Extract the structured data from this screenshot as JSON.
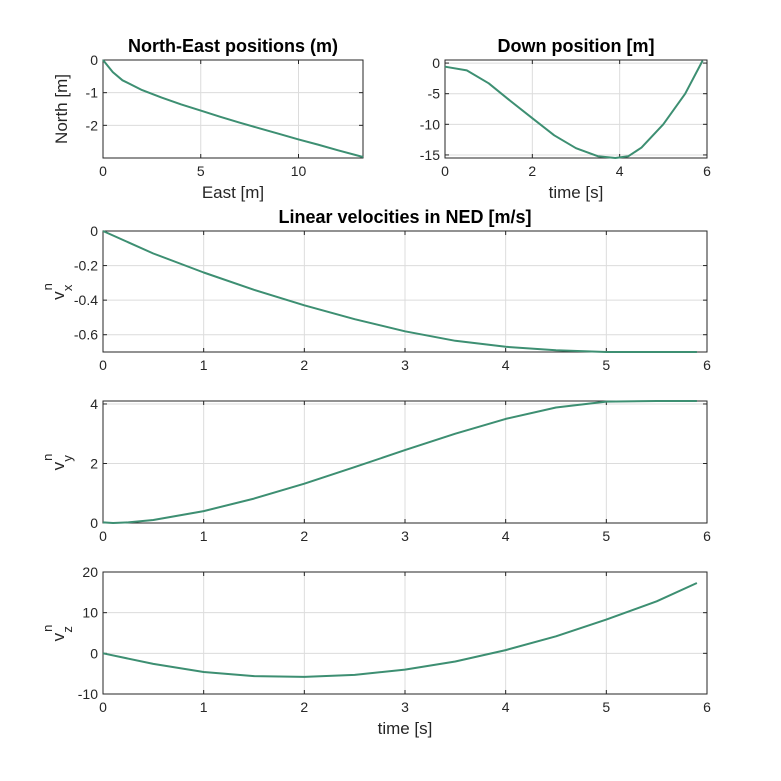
{
  "colors": {
    "line": "#3d8f72",
    "axis": "#262626",
    "grid": "#dcdcdc"
  },
  "chart_data": [
    {
      "id": "ne",
      "type": "line",
      "title": "North-East positions (m)",
      "xlabel": "East [m]",
      "ylabel": "North [m]",
      "xlim": [
        0,
        13.3
      ],
      "ylim": [
        -3.0,
        0.0
      ],
      "xticks": [
        0,
        5,
        10
      ],
      "yticks": [
        -2,
        -1,
        0
      ],
      "grid": true,
      "series": [
        {
          "x": [
            0,
            0.5,
            1,
            2,
            3,
            4,
            5,
            6,
            7,
            8,
            9,
            10,
            11,
            12,
            13.3
          ],
          "y": [
            0,
            -0.37,
            -0.62,
            -0.92,
            -1.15,
            -1.36,
            -1.55,
            -1.74,
            -1.92,
            -2.09,
            -2.26,
            -2.43,
            -2.59,
            -2.76,
            -2.97
          ]
        }
      ]
    },
    {
      "id": "down",
      "type": "line",
      "title": "Down position [m]",
      "xlabel": "time [s]",
      "ylabel": "",
      "xlim": [
        0,
        6
      ],
      "ylim": [
        -15.5,
        0.5
      ],
      "xticks": [
        0,
        2,
        4,
        6
      ],
      "yticks": [
        -15,
        -10,
        -5,
        0
      ],
      "grid": true,
      "series": [
        {
          "x": [
            0,
            0.5,
            1,
            1.5,
            2,
            2.5,
            3,
            3.5,
            3.9,
            4.2,
            4.5,
            5,
            5.5,
            5.9
          ],
          "y": [
            -0.6,
            -1.2,
            -3.3,
            -6.2,
            -9.0,
            -11.8,
            -13.9,
            -15.2,
            -15.5,
            -15.2,
            -13.8,
            -10.0,
            -5.0,
            0.4
          ]
        }
      ]
    },
    {
      "id": "vx",
      "type": "line",
      "title": "Linear velocities in NED [m/s]",
      "xlabel": "",
      "ylabel": "v",
      "ylabel_sup": "n",
      "ylabel_sub": "x",
      "xlim": [
        0,
        6
      ],
      "ylim": [
        -0.7,
        0.0
      ],
      "xticks": [
        0,
        1,
        2,
        3,
        4,
        5,
        6
      ],
      "yticks": [
        -0.6,
        -0.4,
        -0.2,
        0
      ],
      "grid": true,
      "series": [
        {
          "x": [
            0,
            0.5,
            1,
            1.5,
            2,
            2.5,
            3,
            3.5,
            4,
            4.5,
            5,
            5.5,
            5.9
          ],
          "y": [
            0,
            -0.13,
            -0.24,
            -0.34,
            -0.43,
            -0.51,
            -0.58,
            -0.635,
            -0.67,
            -0.69,
            -0.7,
            -0.7,
            -0.7
          ]
        }
      ]
    },
    {
      "id": "vy",
      "type": "line",
      "title": "",
      "xlabel": "",
      "ylabel": "v",
      "ylabel_sup": "n",
      "ylabel_sub": "y",
      "xlim": [
        0,
        6
      ],
      "ylim": [
        0,
        4.1
      ],
      "xticks": [
        0,
        1,
        2,
        3,
        4,
        5,
        6
      ],
      "yticks": [
        0,
        2,
        4
      ],
      "grid": true,
      "series": [
        {
          "x": [
            0,
            0.1,
            0.25,
            0.5,
            1,
            1.5,
            2,
            2.5,
            3,
            3.5,
            4,
            4.5,
            5,
            5.5,
            5.9
          ],
          "y": [
            0.02,
            0,
            0.02,
            0.1,
            0.4,
            0.82,
            1.32,
            1.88,
            2.45,
            3.0,
            3.5,
            3.88,
            4.08,
            4.1,
            4.1
          ]
        }
      ]
    },
    {
      "id": "vz",
      "type": "line",
      "title": "",
      "xlabel": "time [s]",
      "ylabel": "v",
      "ylabel_sup": "n",
      "ylabel_sub": "z",
      "xlim": [
        0,
        6
      ],
      "ylim": [
        -10,
        20
      ],
      "xticks": [
        0,
        1,
        2,
        3,
        4,
        5,
        6
      ],
      "yticks": [
        -10,
        0,
        10,
        20
      ],
      "grid": true,
      "series": [
        {
          "x": [
            0,
            0.5,
            1,
            1.5,
            2,
            2.5,
            3,
            3.5,
            4,
            4.5,
            5,
            5.5,
            5.9
          ],
          "y": [
            0,
            -2.6,
            -4.6,
            -5.6,
            -5.8,
            -5.3,
            -4.0,
            -2.0,
            0.8,
            4.2,
            8.3,
            12.8,
            17.3
          ]
        }
      ]
    }
  ]
}
